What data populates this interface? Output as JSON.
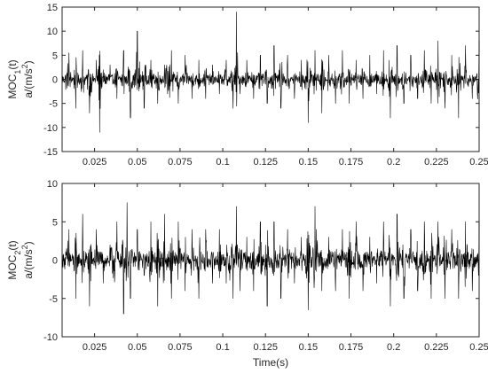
{
  "chart_data": [
    {
      "type": "line",
      "title": "",
      "xlabel": "",
      "ylabel_line1": "MOC",
      "ylabel_line1_sub": "1",
      "ylabel_line1_tail": "(t)",
      "ylabel_line2": "a/(m/s",
      "ylabel_line2_sup": "2",
      "ylabel_line2_tail": ")",
      "xlim": [
        0.006,
        0.25
      ],
      "ylim": [
        -15,
        15
      ],
      "xticks": [
        0.025,
        0.05,
        0.075,
        0.1,
        0.125,
        0.15,
        0.175,
        0.2,
        0.225,
        0.25
      ],
      "xtick_labels": [
        "0.025",
        "0.05",
        "0.075",
        "0.1",
        "0.125",
        "0.15",
        "0.175",
        "0.2",
        "0.225",
        "0.25"
      ],
      "yticks": [
        -15,
        -10,
        -5,
        0,
        5,
        10,
        15
      ],
      "ytick_labels": [
        "-15",
        "-10",
        "-5",
        "0",
        "5",
        "10",
        "15"
      ],
      "grid": false,
      "line_color": "#000000",
      "series": [
        {
          "x": [
            0.006,
            0.01,
            0.014,
            0.018,
            0.022,
            0.026,
            0.028,
            0.03,
            0.034,
            0.038,
            0.042,
            0.046,
            0.05,
            0.054,
            0.058,
            0.062,
            0.066,
            0.07,
            0.074,
            0.078,
            0.082,
            0.086,
            0.09,
            0.094,
            0.098,
            0.102,
            0.106,
            0.108,
            0.11,
            0.114,
            0.118,
            0.122,
            0.126,
            0.13,
            0.134,
            0.138,
            0.142,
            0.146,
            0.15,
            0.154,
            0.158,
            0.162,
            0.166,
            0.17,
            0.174,
            0.178,
            0.182,
            0.186,
            0.19,
            0.194,
            0.198,
            0.202,
            0.206,
            0.21,
            0.214,
            0.218,
            0.222,
            0.226,
            0.23,
            0.234,
            0.238,
            0.242,
            0.246,
            0.25
          ],
          "y": [
            0,
            5.5,
            -6,
            6,
            -7,
            4,
            -11,
            2,
            3,
            -4,
            6,
            -8,
            10,
            -6,
            4,
            -5,
            3,
            6,
            -5,
            5,
            -4,
            4,
            -4,
            3,
            -3,
            4,
            -6,
            14,
            -3,
            4,
            -4,
            5,
            -5,
            7,
            -6,
            5,
            -4,
            4,
            -9,
            6,
            -7,
            5,
            -5,
            6,
            -5,
            4,
            -4,
            5,
            -3,
            6,
            -8,
            7,
            -5,
            5,
            -4,
            6,
            -5,
            8,
            -6,
            5,
            -8,
            7,
            -4,
            8
          ]
        }
      ]
    },
    {
      "type": "line",
      "title": "",
      "xlabel": "Time(s)",
      "ylabel_line1": "MOC",
      "ylabel_line1_sub": "2",
      "ylabel_line1_tail": "(t)",
      "ylabel_line2": "a/(m/s",
      "ylabel_line2_sup": "2",
      "ylabel_line2_tail": ")",
      "xlim": [
        0.006,
        0.25
      ],
      "ylim": [
        -10,
        10
      ],
      "xticks": [
        0.025,
        0.05,
        0.075,
        0.1,
        0.125,
        0.15,
        0.175,
        0.2,
        0.225,
        0.25
      ],
      "xtick_labels": [
        "0.025",
        "0.05",
        "0.075",
        "0.1",
        "0.125",
        "0.15",
        "0.175",
        "0.2",
        "0.225",
        "0.25"
      ],
      "yticks": [
        -10,
        -5,
        0,
        5,
        10
      ],
      "ytick_labels": [
        "-10",
        "-5",
        "0",
        "5",
        "10"
      ],
      "grid": false,
      "line_color": "#000000",
      "series": [
        {
          "x": [
            0.006,
            0.01,
            0.014,
            0.018,
            0.022,
            0.026,
            0.03,
            0.034,
            0.038,
            0.042,
            0.044,
            0.046,
            0.05,
            0.054,
            0.058,
            0.062,
            0.066,
            0.07,
            0.074,
            0.078,
            0.082,
            0.086,
            0.09,
            0.094,
            0.098,
            0.102,
            0.106,
            0.108,
            0.11,
            0.114,
            0.118,
            0.122,
            0.126,
            0.13,
            0.134,
            0.138,
            0.142,
            0.146,
            0.15,
            0.154,
            0.158,
            0.162,
            0.166,
            0.17,
            0.174,
            0.178,
            0.182,
            0.186,
            0.19,
            0.194,
            0.198,
            0.202,
            0.206,
            0.21,
            0.214,
            0.218,
            0.222,
            0.226,
            0.23,
            0.234,
            0.238,
            0.242,
            0.246,
            0.25
          ],
          "y": [
            0,
            4,
            -5,
            6,
            -6,
            4,
            -3,
            2,
            5,
            -7,
            7.5,
            -5,
            4,
            -2,
            5,
            -6,
            6,
            -5,
            5,
            -4,
            4,
            -5,
            4,
            -3,
            4,
            -3,
            -5,
            7,
            -4,
            3,
            -4,
            5,
            -6,
            5,
            -5,
            4,
            -3,
            3,
            -6.5,
            7,
            -4,
            3,
            -4,
            4,
            -5,
            5,
            -4,
            3,
            -3,
            5,
            -6,
            6,
            -5,
            4,
            -4,
            5,
            -5,
            5,
            -5,
            4,
            -5,
            5,
            -4,
            5
          ]
        }
      ]
    }
  ]
}
